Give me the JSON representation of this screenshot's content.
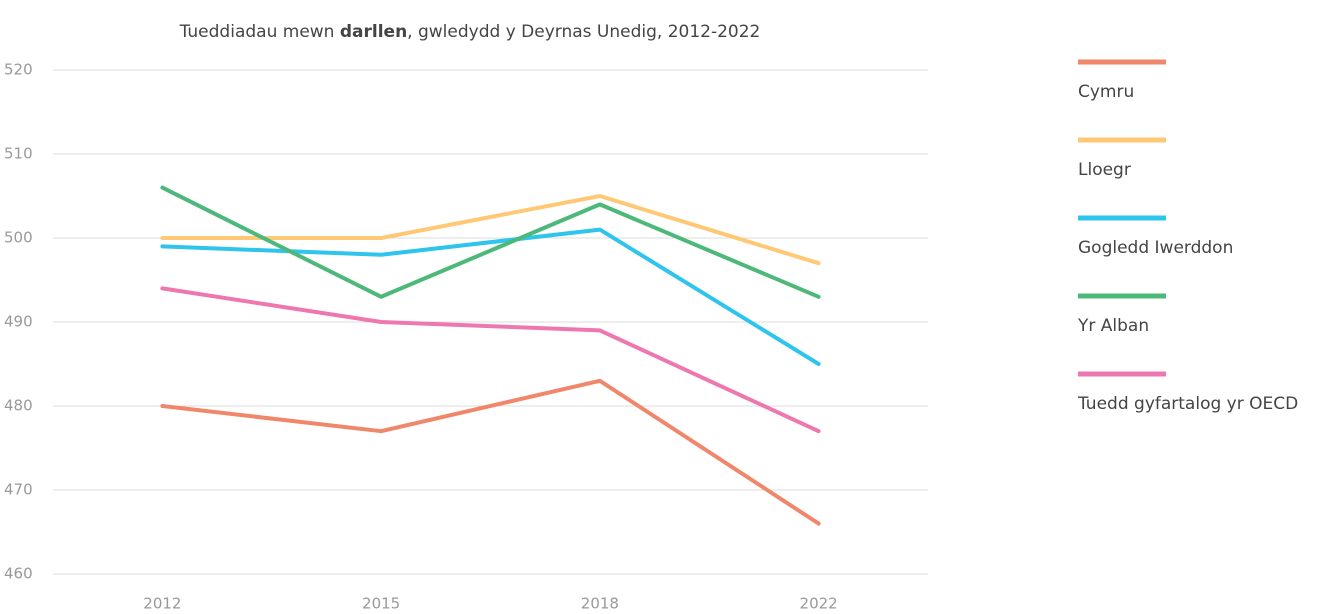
{
  "chart_data": {
    "type": "line",
    "title": [
      "Tueddiadau mewn ",
      "darllen",
      ", gwledydd y Deyrnas Unedig, 2012-2022"
    ],
    "categories": [
      "2012",
      "2015",
      "2018",
      "2022"
    ],
    "series": [
      {
        "name": "Cymru",
        "color": "#f0876a",
        "values": [
          480,
          477,
          483,
          466
        ]
      },
      {
        "name": "Lloegr",
        "color": "#ffc875",
        "values": [
          500,
          500,
          505,
          497
        ]
      },
      {
        "name": "Gogledd Iwerddon",
        "color": "#2ec4ec",
        "values": [
          499,
          498,
          501,
          485
        ]
      },
      {
        "name": "Yr Alban",
        "color": "#4cb87a",
        "values": [
          506,
          493,
          504,
          493
        ]
      },
      {
        "name": "Tuedd gyfartalog yr OECD",
        "color": "#ef77b0",
        "values": [
          494,
          490,
          489,
          477
        ]
      }
    ],
    "ylim": [
      460,
      520
    ],
    "yticks": [
      460,
      470,
      480,
      490,
      500,
      510,
      520
    ],
    "grid": true,
    "legend": "right"
  }
}
